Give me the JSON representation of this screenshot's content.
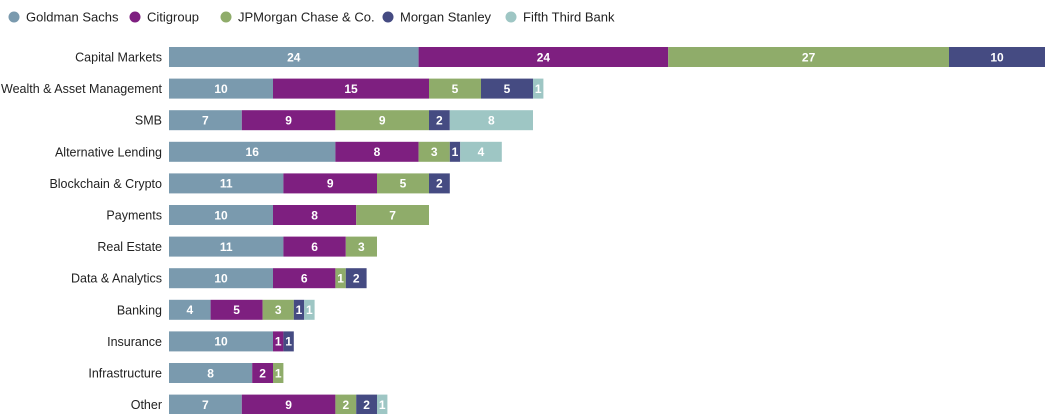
{
  "chart_data": {
    "type": "bar",
    "orientation": "horizontal",
    "stacked": true,
    "legend_position": "top-left",
    "grid": false,
    "categories": [
      "Capital Markets",
      "Wealth & Asset Management",
      "SMB",
      "Alternative Lending",
      "Blockchain & Crypto",
      "Payments",
      "Real Estate",
      "Data & Analytics",
      "Banking",
      "Insurance",
      "Infrastructure",
      "Other"
    ],
    "series": [
      {
        "name": "Goldman Sachs",
        "color": "#7a9aae",
        "values": [
          24,
          10,
          7,
          16,
          11,
          10,
          11,
          10,
          4,
          10,
          8,
          7
        ]
      },
      {
        "name": "Citigroup",
        "color": "#7e1f80",
        "values": [
          24,
          15,
          9,
          8,
          9,
          8,
          6,
          6,
          5,
          1,
          2,
          9
        ]
      },
      {
        "name": "JPMorgan Chase & Co.",
        "color": "#8fac6a",
        "values": [
          27,
          5,
          9,
          3,
          5,
          7,
          3,
          1,
          3,
          0,
          1,
          2
        ]
      },
      {
        "name": "Morgan Stanley",
        "color": "#454b82",
        "values": [
          10,
          5,
          2,
          1,
          2,
          0,
          0,
          2,
          1,
          1,
          0,
          2
        ]
      },
      {
        "name": "Fifth Third Bank",
        "color": "#9ec6c4",
        "values": [
          0,
          1,
          8,
          4,
          0,
          0,
          0,
          0,
          1,
          0,
          0,
          1
        ]
      }
    ]
  }
}
